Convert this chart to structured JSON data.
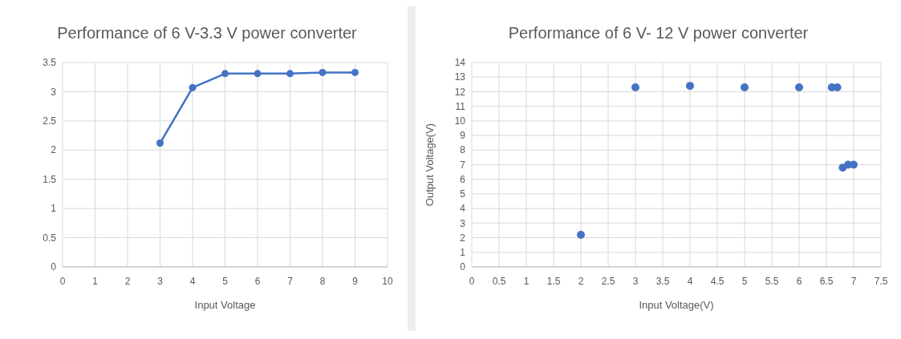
{
  "chart_data": [
    {
      "type": "line",
      "title": "Performance of 6 V-3.3 V power converter",
      "xlabel": "Input Voltage",
      "x": [
        3,
        4,
        5,
        6,
        7,
        8,
        9
      ],
      "series": [
        {
          "color": "#4472c4",
          "values": [
            2.12,
            3.07,
            3.31,
            3.31,
            3.31,
            3.33,
            3.33
          ]
        }
      ],
      "xlim": [
        0,
        10
      ],
      "xticks": [
        0,
        1,
        2,
        3,
        4,
        5,
        6,
        7,
        8,
        9,
        10
      ],
      "ylim": [
        0,
        3.5
      ],
      "yticks": [
        0,
        0.5,
        1,
        1.5,
        2,
        2.5,
        3,
        3.5
      ],
      "grid": true,
      "marker": "circle",
      "line_style": "solid"
    },
    {
      "type": "scatter",
      "title": "Performance of 6 V- 12 V power converter",
      "xlabel": "Input Voltage(V)",
      "ylabel": "Output  Voltage(V)",
      "x": [
        2,
        3,
        4,
        5,
        6,
        6.6,
        6.7,
        6.8,
        6.9,
        7
      ],
      "series": [
        {
          "color": "#4472c4",
          "values": [
            2.2,
            12.3,
            12.4,
            12.3,
            12.3,
            12.3,
            12.3,
            6.8,
            7.0,
            7.0
          ]
        }
      ],
      "xlim": [
        0,
        7.5
      ],
      "xticks": [
        0,
        0.5,
        1,
        1.5,
        2,
        2.5,
        3,
        3.5,
        4,
        4.5,
        5,
        5.5,
        6,
        6.5,
        7,
        7.5
      ],
      "ylim": [
        0,
        14
      ],
      "yticks": [
        0,
        1,
        2,
        3,
        4,
        5,
        6,
        7,
        8,
        9,
        10,
        11,
        12,
        13,
        14
      ],
      "grid": true,
      "marker": "circle"
    }
  ]
}
